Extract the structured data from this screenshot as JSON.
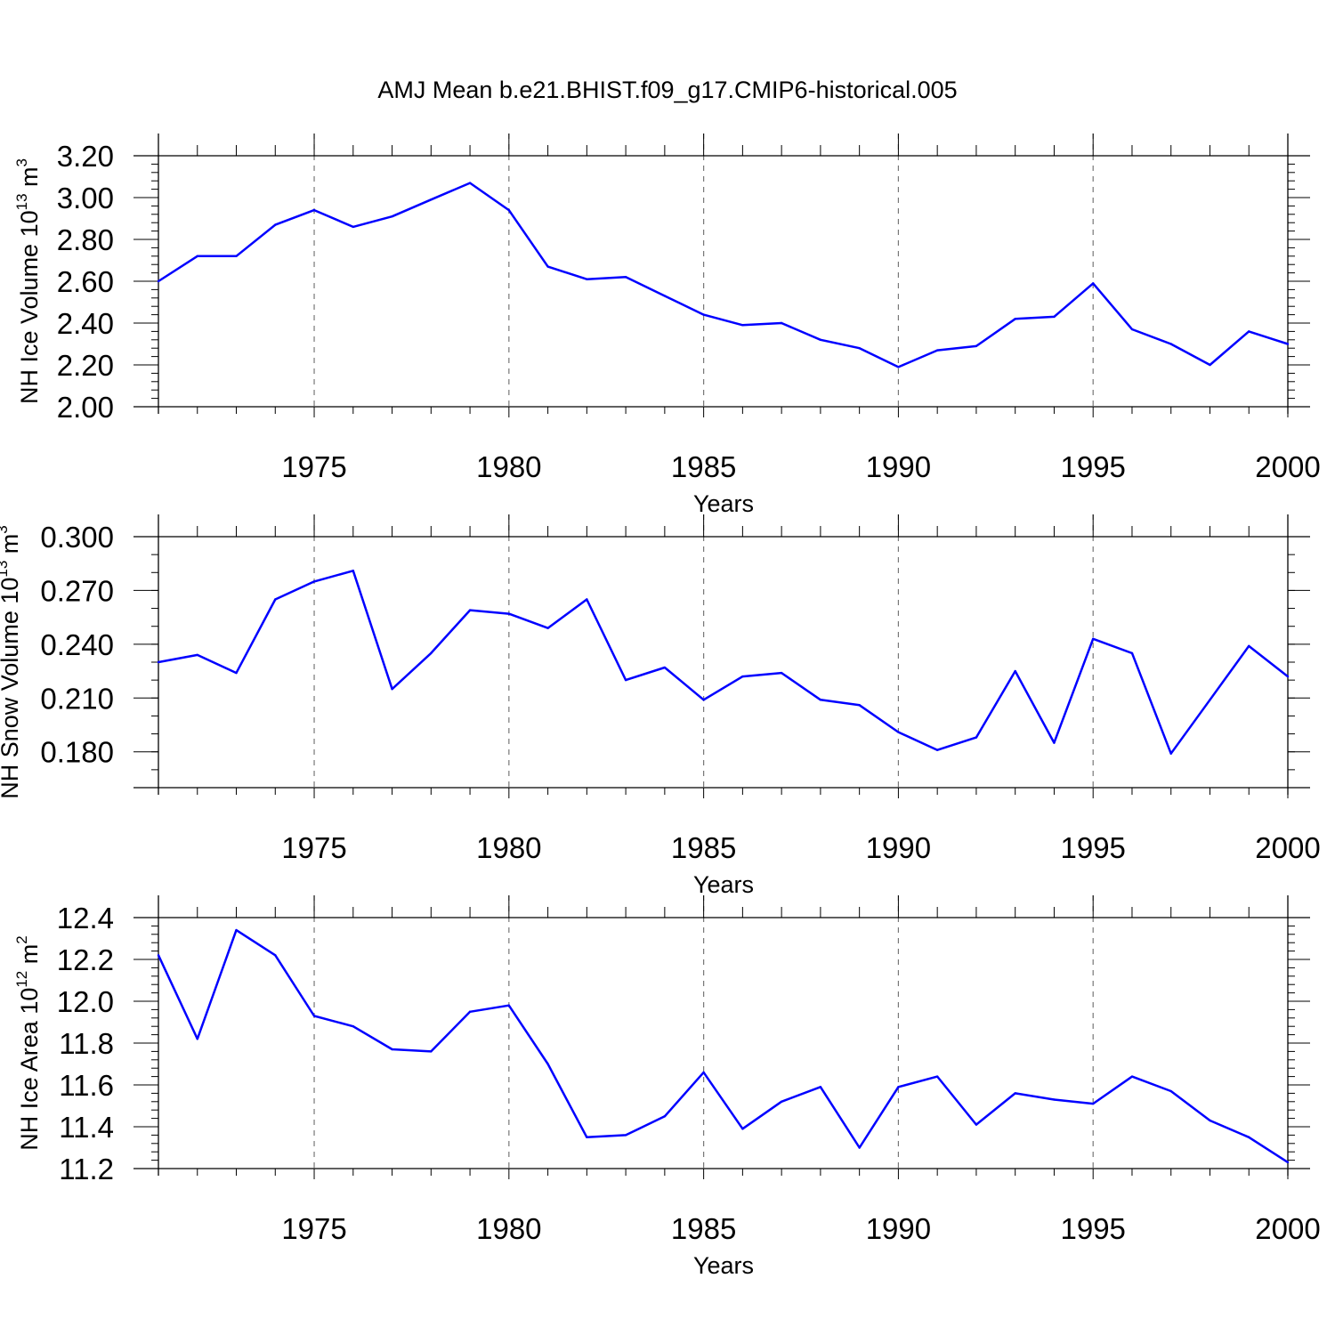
{
  "figure_title": "AMJ Mean b.e21.BHIST.f09_g17.CMIP6-historical.005",
  "colors": {
    "series": "#0000ff",
    "grid": "#777777",
    "axes": "#000000"
  },
  "chart_data": [
    {
      "type": "line",
      "title": "AMJ Mean b.e21.BHIST.f09_g17.CMIP6-historical.005",
      "ylabel": {
        "base": "NH Ice Volume 10",
        "exp": "13",
        "unit": " m",
        "unit_exp": "3"
      },
      "xlabel": "Years",
      "xlim": [
        1971,
        2000
      ],
      "ylim": [
        2.0,
        3.2
      ],
      "yticks": [
        2.0,
        2.2,
        2.4,
        2.6,
        2.8,
        3.0,
        3.2
      ],
      "ytick_labels": [
        "2.00",
        "2.20",
        "2.40",
        "2.60",
        "2.80",
        "3.00",
        "3.20"
      ],
      "ytick_minor_step": 0.04,
      "xticks": [
        1975,
        1980,
        1985,
        1990,
        1995,
        2000
      ],
      "xtick_labels": [
        "1975",
        "1980",
        "1985",
        "1990",
        "1995",
        "2000"
      ],
      "grid": "vertical dashed at major x ticks",
      "x": [
        1971,
        1972,
        1973,
        1974,
        1975,
        1976,
        1977,
        1978,
        1979,
        1980,
        1981,
        1982,
        1983,
        1984,
        1985,
        1986,
        1987,
        1988,
        1989,
        1990,
        1991,
        1992,
        1993,
        1994,
        1995,
        1996,
        1997,
        1998,
        1999,
        2000
      ],
      "y": [
        2.6,
        2.72,
        2.72,
        2.87,
        2.94,
        2.86,
        2.91,
        2.99,
        3.07,
        2.94,
        2.67,
        2.61,
        2.62,
        2.53,
        2.44,
        2.39,
        2.4,
        2.32,
        2.28,
        2.19,
        2.27,
        2.29,
        2.42,
        2.43,
        2.59,
        2.37,
        2.3,
        2.2,
        2.36,
        2.3
      ]
    },
    {
      "type": "line",
      "ylabel": {
        "base": "NH Snow Volume 10",
        "exp": "13",
        "unit": " m",
        "unit_exp": "3"
      },
      "xlabel": "Years",
      "xlim": [
        1971,
        2000
      ],
      "ylim": [
        0.16,
        0.3
      ],
      "yticks": [
        0.18,
        0.21,
        0.24,
        0.27,
        0.3
      ],
      "ytick_labels": [
        "0.180",
        "0.210",
        "0.240",
        "0.270",
        "0.300"
      ],
      "ytick_minor_step": 0.01,
      "xticks": [
        1975,
        1980,
        1985,
        1990,
        1995,
        2000
      ],
      "xtick_labels": [
        "1975",
        "1980",
        "1985",
        "1990",
        "1995",
        "2000"
      ],
      "grid": "vertical dashed at major x ticks",
      "x": [
        1971,
        1972,
        1973,
        1974,
        1975,
        1976,
        1977,
        1978,
        1979,
        1980,
        1981,
        1982,
        1983,
        1984,
        1985,
        1986,
        1987,
        1988,
        1989,
        1990,
        1991,
        1992,
        1993,
        1994,
        1995,
        1996,
        1997,
        1998,
        1999,
        2000
      ],
      "y": [
        0.23,
        0.234,
        0.224,
        0.265,
        0.275,
        0.281,
        0.215,
        0.235,
        0.259,
        0.257,
        0.249,
        0.265,
        0.22,
        0.227,
        0.209,
        0.222,
        0.224,
        0.209,
        0.206,
        0.191,
        0.181,
        0.188,
        0.225,
        0.185,
        0.243,
        0.235,
        0.179,
        0.209,
        0.239,
        0.222
      ]
    },
    {
      "type": "line",
      "ylabel": {
        "base": "NH Ice Area 10",
        "exp": "12",
        "unit": " m",
        "unit_exp": "2"
      },
      "xlabel": "Years",
      "xlim": [
        1971,
        2000
      ],
      "ylim": [
        11.2,
        12.4
      ],
      "yticks": [
        11.2,
        11.4,
        11.6,
        11.8,
        12.0,
        12.2,
        12.4
      ],
      "ytick_labels": [
        "11.2",
        "11.4",
        "11.6",
        "11.8",
        "12.0",
        "12.2",
        "12.4"
      ],
      "ytick_minor_step": 0.04,
      "xticks": [
        1975,
        1980,
        1985,
        1990,
        1995,
        2000
      ],
      "xtick_labels": [
        "1975",
        "1980",
        "1985",
        "1990",
        "1995",
        "2000"
      ],
      "grid": "vertical dashed at major x ticks",
      "x": [
        1971,
        1972,
        1973,
        1974,
        1975,
        1976,
        1977,
        1978,
        1979,
        1980,
        1981,
        1982,
        1983,
        1984,
        1985,
        1986,
        1987,
        1988,
        1989,
        1990,
        1991,
        1992,
        1993,
        1994,
        1995,
        1996,
        1997,
        1998,
        1999,
        2000
      ],
      "y": [
        12.22,
        11.82,
        12.34,
        12.22,
        11.93,
        11.88,
        11.77,
        11.76,
        11.95,
        11.98,
        11.7,
        11.35,
        11.36,
        11.45,
        11.66,
        11.39,
        11.52,
        11.59,
        11.3,
        11.59,
        11.64,
        11.41,
        11.56,
        11.53,
        11.51,
        11.64,
        11.57,
        11.43,
        11.35,
        11.23
      ]
    }
  ]
}
